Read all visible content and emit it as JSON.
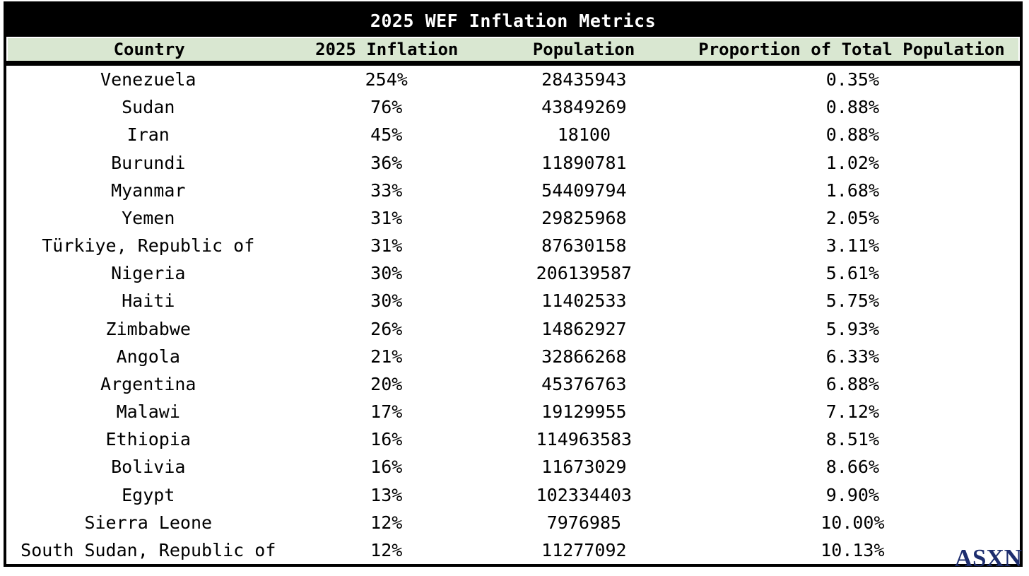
{
  "title": "2025 WEF Inflation Metrics",
  "watermark": "ASXN",
  "colors": {
    "title_bg": "#000000",
    "title_fg": "#ffffff",
    "header_bg": "#d9e7d1",
    "body_text": "#000000",
    "watermark_color": "#1d2d6e"
  },
  "chart_data": {
    "type": "table",
    "title": "2025 WEF Inflation Metrics",
    "columns": [
      "Country",
      "2025 Inflation",
      "Population",
      "Proportion of Total Population"
    ],
    "rows": [
      [
        "Venezuela",
        "254%",
        "28435943",
        "0.35%"
      ],
      [
        "Sudan",
        "76%",
        "43849269",
        "0.88%"
      ],
      [
        "Iran",
        "45%",
        "18100",
        "0.88%"
      ],
      [
        "Burundi",
        "36%",
        "11890781",
        "1.02%"
      ],
      [
        "Myanmar",
        "33%",
        "54409794",
        "1.68%"
      ],
      [
        "Yemen",
        "31%",
        "29825968",
        "2.05%"
      ],
      [
        "Türkiye, Republic of",
        "31%",
        "87630158",
        "3.11%"
      ],
      [
        "Nigeria",
        "30%",
        "206139587",
        "5.61%"
      ],
      [
        "Haiti",
        "30%",
        "11402533",
        "5.75%"
      ],
      [
        "Zimbabwe",
        "26%",
        "14862927",
        "5.93%"
      ],
      [
        "Angola",
        "21%",
        "32866268",
        "6.33%"
      ],
      [
        "Argentina",
        "20%",
        "45376763",
        "6.88%"
      ],
      [
        "Malawi",
        "17%",
        "19129955",
        "7.12%"
      ],
      [
        "Ethiopia",
        "16%",
        "114963583",
        "8.51%"
      ],
      [
        "Bolivia",
        "16%",
        "11673029",
        "8.66%"
      ],
      [
        "Egypt",
        "13%",
        "102334403",
        "9.90%"
      ],
      [
        "Sierra Leone",
        "12%",
        "7976985",
        "10.00%"
      ],
      [
        "South Sudan, Republic of",
        "12%",
        "11277092",
        "10.13%"
      ]
    ]
  }
}
